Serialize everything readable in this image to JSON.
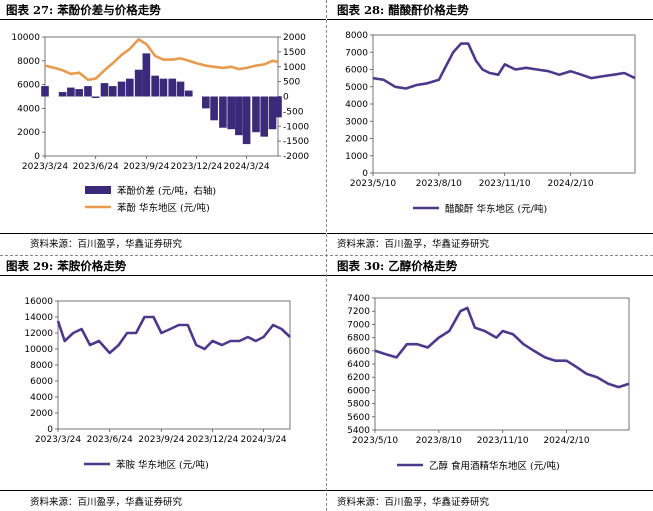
{
  "panels": [
    {
      "title": "图表 27: 苯酚价差与价格走势",
      "source": "资料来源：百川盈孚，华鑫证券研究"
    },
    {
      "title": "图表 28: 醋酸酐价格走势",
      "source": "资料来源：百川盈孚，华鑫证券研究"
    },
    {
      "title": "图表 29: 苯胺价格走势",
      "source": "资料来源：百川盈孚，华鑫证券研究"
    },
    {
      "title": "图表 30: 乙醇价格走势",
      "source": "资料来源：百川盈孚，华鑫证券研究"
    }
  ],
  "chart_data": [
    {
      "type": "bar+line",
      "title": "",
      "x_ticks": [
        "2023/3/24",
        "2023/6/24",
        "2023/9/24",
        "2023/12/24",
        "2024/3/24"
      ],
      "x_range": [
        "2023-03-24",
        "2024-05-20"
      ],
      "y_left": {
        "ticks": [
          0,
          2000,
          4000,
          6000,
          8000,
          10000
        ],
        "lim": [
          0,
          10000
        ]
      },
      "y_right": {
        "ticks": [
          2000,
          1500,
          1000,
          500,
          0,
          -500,
          -1000,
          -1500,
          -2000
        ],
        "lim": [
          -2000,
          2000
        ]
      },
      "series": [
        {
          "name": "苯酚价差  (元/吨，右轴)",
          "kind": "bar",
          "axis": "right",
          "color": "#3a2a7a",
          "x": [
            "2023-03-24",
            "2023-04-10",
            "2023-04-25",
            "2023-05-10",
            "2023-05-25",
            "2023-06-10",
            "2023-06-24",
            "2023-07-10",
            "2023-07-25",
            "2023-08-10",
            "2023-08-25",
            "2023-09-10",
            "2023-09-24",
            "2023-10-10",
            "2023-10-25",
            "2023-11-10",
            "2023-11-25",
            "2023-12-10",
            "2023-12-24",
            "2024-01-10",
            "2024-01-25",
            "2024-02-10",
            "2024-02-25",
            "2024-03-10",
            "2024-03-24",
            "2024-04-10",
            "2024-04-25",
            "2024-05-10",
            "2024-05-20"
          ],
          "y": [
            350,
            0,
            150,
            300,
            250,
            350,
            -50,
            450,
            350,
            500,
            600,
            900,
            1450,
            700,
            600,
            600,
            500,
            200,
            0,
            -400,
            -800,
            -1050,
            -1100,
            -1300,
            -1600,
            -1200,
            -1350,
            -1100,
            -700
          ]
        },
        {
          "name": "苯酚  华东地区  (元/吨)",
          "kind": "line",
          "axis": "left",
          "color": "#e89a4e",
          "x": [
            "2023-03-24",
            "2023-04-10",
            "2023-04-25",
            "2023-05-10",
            "2023-05-25",
            "2023-06-10",
            "2023-06-24",
            "2023-07-10",
            "2023-07-25",
            "2023-08-10",
            "2023-08-25",
            "2023-09-10",
            "2023-09-24",
            "2023-10-10",
            "2023-10-25",
            "2023-11-10",
            "2023-11-25",
            "2023-12-10",
            "2023-12-24",
            "2024-01-10",
            "2024-01-25",
            "2024-02-10",
            "2024-02-25",
            "2024-03-10",
            "2024-03-24",
            "2024-04-10",
            "2024-04-25",
            "2024-05-10",
            "2024-05-20"
          ],
          "y": [
            7600,
            7400,
            7200,
            6900,
            7000,
            6400,
            6500,
            7200,
            7800,
            8500,
            9000,
            9800,
            9400,
            8400,
            8100,
            8100,
            8200,
            8000,
            7800,
            7600,
            7500,
            7400,
            7500,
            7300,
            7400,
            7600,
            7700,
            8000,
            7900
          ]
        }
      ]
    },
    {
      "type": "line",
      "title": "",
      "x_ticks": [
        "2023/5/10",
        "2023/8/10",
        "2023/11/10",
        "2024/2/10"
      ],
      "x_range": [
        "2023-05-10",
        "2024-05-10"
      ],
      "y": {
        "ticks": [
          0,
          1000,
          2000,
          3000,
          4000,
          5000,
          6000,
          7000,
          8000
        ],
        "lim": [
          0,
          8000
        ]
      },
      "series": [
        {
          "name": "醋酸酐  华东地区  (元/吨)",
          "color": "#4b3a8c",
          "x": [
            "2023-05-10",
            "2023-05-25",
            "2023-06-10",
            "2023-06-25",
            "2023-07-10",
            "2023-07-25",
            "2023-08-10",
            "2023-08-20",
            "2023-08-30",
            "2023-09-10",
            "2023-09-20",
            "2023-10-01",
            "2023-10-10",
            "2023-10-20",
            "2023-11-01",
            "2023-11-10",
            "2023-11-25",
            "2023-12-10",
            "2023-12-25",
            "2024-01-10",
            "2024-01-25",
            "2024-02-10",
            "2024-02-25",
            "2024-03-10",
            "2024-03-25",
            "2024-04-10",
            "2024-04-25",
            "2024-05-10"
          ],
          "y": [
            5500,
            5400,
            5000,
            4900,
            5100,
            5200,
            5400,
            6200,
            7000,
            7500,
            7500,
            6500,
            6000,
            5800,
            5700,
            6300,
            6000,
            6100,
            6000,
            5900,
            5700,
            5900,
            5700,
            5500,
            5600,
            5700,
            5800,
            5500
          ]
        }
      ]
    },
    {
      "type": "line",
      "title": "",
      "x_ticks": [
        "2023/3/24",
        "2023/6/24",
        "2023/9/24",
        "2023/12/24",
        "2024/3/24"
      ],
      "x_range": [
        "2023-03-24",
        "2024-05-10"
      ],
      "y": {
        "ticks": [
          0,
          2000,
          4000,
          6000,
          8000,
          10000,
          12000,
          14000,
          16000
        ],
        "lim": [
          0,
          16000
        ]
      },
      "series": [
        {
          "name": "苯胺  华东地区  (元/吨)",
          "color": "#4b3a8c",
          "x": [
            "2023-03-24",
            "2023-04-05",
            "2023-04-20",
            "2023-05-05",
            "2023-05-20",
            "2023-06-05",
            "2023-06-24",
            "2023-07-10",
            "2023-07-25",
            "2023-08-10",
            "2023-08-25",
            "2023-09-10",
            "2023-09-24",
            "2023-10-10",
            "2023-10-25",
            "2023-11-10",
            "2023-11-25",
            "2023-12-10",
            "2023-12-24",
            "2024-01-10",
            "2024-01-25",
            "2024-02-10",
            "2024-02-25",
            "2024-03-10",
            "2024-03-24",
            "2024-04-10",
            "2024-04-25",
            "2024-05-10"
          ],
          "y": [
            13500,
            11000,
            12000,
            12500,
            10500,
            11000,
            9500,
            10500,
            12000,
            12000,
            14000,
            14000,
            12000,
            12500,
            13000,
            13000,
            10500,
            10000,
            11000,
            10500,
            11000,
            11000,
            11500,
            11000,
            11500,
            13000,
            12500,
            11500
          ]
        }
      ]
    },
    {
      "type": "line",
      "title": "",
      "x_ticks": [
        "2023/5/10",
        "2023/8/10",
        "2023/11/10",
        "2024/2/10"
      ],
      "x_range": [
        "2023-05-10",
        "2024-05-10"
      ],
      "y": {
        "ticks": [
          5400,
          5600,
          5800,
          6000,
          6200,
          6400,
          6600,
          6800,
          7000,
          7200,
          7400
        ],
        "lim": [
          5400,
          7400
        ]
      },
      "series": [
        {
          "name": "乙醇  食用酒精华东地区  (元/吨)",
          "color": "#4b3a8c",
          "x": [
            "2023-05-10",
            "2023-05-25",
            "2023-06-10",
            "2023-06-25",
            "2023-07-10",
            "2023-07-25",
            "2023-08-10",
            "2023-08-25",
            "2023-09-10",
            "2023-09-20",
            "2023-10-01",
            "2023-10-15",
            "2023-11-01",
            "2023-11-10",
            "2023-11-25",
            "2023-12-10",
            "2023-12-25",
            "2024-01-10",
            "2024-01-25",
            "2024-02-10",
            "2024-02-25",
            "2024-03-10",
            "2024-03-25",
            "2024-04-10",
            "2024-04-25",
            "2024-05-10"
          ],
          "y": [
            6600,
            6550,
            6500,
            6700,
            6700,
            6650,
            6800,
            6900,
            7200,
            7250,
            6950,
            6900,
            6800,
            6900,
            6850,
            6700,
            6600,
            6500,
            6450,
            6450,
            6350,
            6250,
            6200,
            6100,
            6050,
            6100
          ]
        }
      ]
    }
  ]
}
